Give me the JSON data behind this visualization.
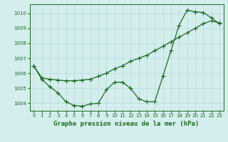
{
  "title": "Graphe pression niveau de la mer (hPa)",
  "hours": [
    0,
    1,
    2,
    3,
    4,
    5,
    6,
    7,
    8,
    9,
    10,
    11,
    12,
    13,
    14,
    15,
    16,
    17,
    18,
    19,
    20,
    21,
    22,
    23
  ],
  "series1": [
    1006.5,
    1005.6,
    1005.1,
    1004.7,
    1004.1,
    1003.85,
    1003.8,
    1003.95,
    1004.0,
    1004.9,
    1005.4,
    1005.4,
    1005.0,
    1004.3,
    1004.1,
    1004.1,
    1005.8,
    1007.5,
    1009.2,
    1010.2,
    1010.1,
    1010.05,
    1009.7,
    1009.3
  ],
  "series2": [
    1006.5,
    1005.7,
    1005.6,
    1005.55,
    1005.5,
    1005.5,
    1005.55,
    1005.6,
    1005.8,
    1006.0,
    1006.3,
    1006.5,
    1006.8,
    1007.0,
    1007.2,
    1007.5,
    1007.8,
    1008.1,
    1008.4,
    1008.7,
    1009.0,
    1009.3,
    1009.5,
    1009.35
  ],
  "line_color": "#1a6b1a",
  "bg_color": "#d4eeee",
  "grid_color": "#b8d8d8",
  "ylim_min": 1003.5,
  "ylim_max": 1010.6,
  "yticks": [
    1004,
    1005,
    1006,
    1007,
    1008,
    1009,
    1010
  ],
  "xlim_min": -0.5,
  "xlim_max": 23.5,
  "marker_size": 3,
  "linewidth": 0.9,
  "tick_fontsize": 5,
  "label_fontsize": 6.5
}
